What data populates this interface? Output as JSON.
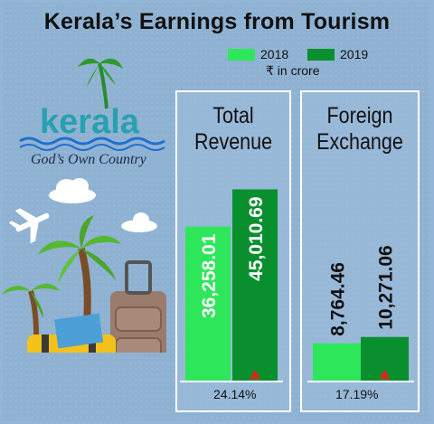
{
  "title": "Kerala’s Earnings from Tourism",
  "legend": [
    {
      "label": "2018",
      "color": "#2ee65a"
    },
    {
      "label": "2019",
      "color": "#0a8f2f"
    }
  ],
  "unit": "₹ in crore",
  "logo": {
    "wordmark": "kerala",
    "tagline": "God’s Own Country"
  },
  "chart_data": [
    {
      "type": "bar",
      "title": "Total Revenue",
      "categories": [
        "2018",
        "2019"
      ],
      "values": [
        36258.01,
        45010.69
      ],
      "value_labels": [
        "36,258.01",
        "45,010.69"
      ],
      "growth_label": "24.14%",
      "ylim": [
        0,
        50000
      ]
    },
    {
      "type": "bar",
      "title": "Foreign Exchange",
      "categories": [
        "2018",
        "2019"
      ],
      "values": [
        8764.46,
        10271.06
      ],
      "value_labels": [
        "8,764.46",
        "10,271.06"
      ],
      "growth_label": "17.19%",
      "ylim": [
        0,
        50000
      ]
    }
  ]
}
